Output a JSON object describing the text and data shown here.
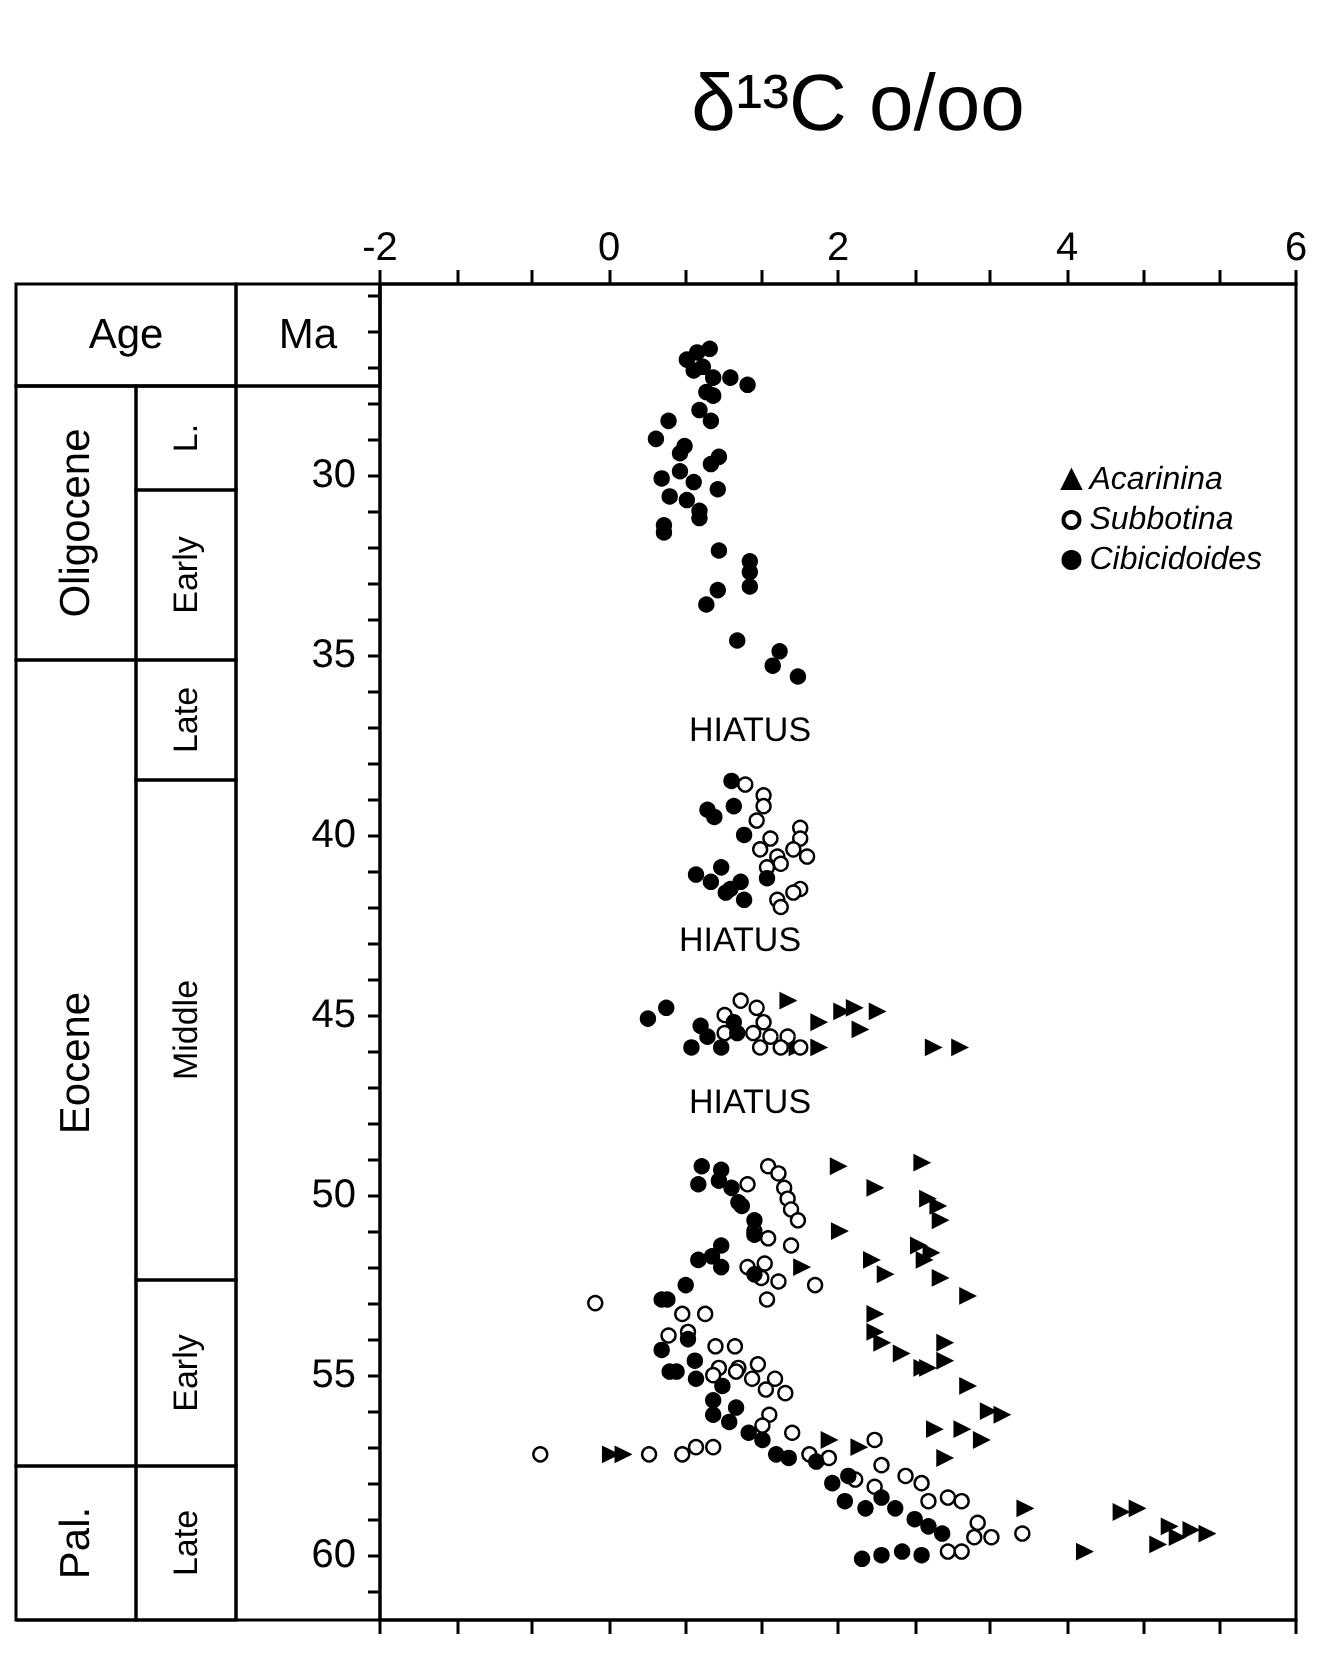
{
  "chart_data": {
    "type": "scatter",
    "xlabel": "δ¹³C o/oo",
    "ylabel": "Ma",
    "xlim": [
      -2,
      6
    ],
    "xticks": [
      -2,
      {
        "value": -1.33,
        "label": null
      },
      {
        "value": -0.67,
        "label": null
      },
      0,
      {
        "value": 0.67,
        "label": null
      },
      {
        "value": 1.33,
        "label": null
      },
      2,
      {
        "value": 2.67,
        "label": null
      },
      {
        "value": 3.33,
        "label": null
      },
      4,
      {
        "value": 4.67,
        "label": null
      },
      {
        "value": 5.33,
        "label": null
      },
      6
    ],
    "ylim": [
      61.8,
      24.7
    ],
    "yticks": [
      {
        "value": 25,
        "label": null
      },
      {
        "value": 26,
        "label": null
      },
      {
        "value": 27,
        "label": null
      },
      {
        "value": 28,
        "label": null
      },
      {
        "value": 29,
        "label": null
      },
      30,
      {
        "value": 31,
        "label": null
      },
      {
        "value": 32,
        "label": null
      },
      {
        "value": 33,
        "label": null
      },
      {
        "value": 34,
        "label": null
      },
      35,
      {
        "value": 36,
        "label": null
      },
      {
        "value": 37,
        "label": null
      },
      {
        "value": 38,
        "label": null
      },
      {
        "value": 39,
        "label": null
      },
      40,
      {
        "value": 41,
        "label": null
      },
      {
        "value": 42,
        "label": null
      },
      {
        "value": 43,
        "label": null
      },
      {
        "value": 44,
        "label": null
      },
      45,
      {
        "value": 46,
        "label": null
      },
      {
        "value": 47,
        "label": null
      },
      {
        "value": 48,
        "label": null
      },
      {
        "value": 49,
        "label": null
      },
      50,
      {
        "value": 51,
        "label": null
      },
      {
        "value": 52,
        "label": null
      },
      {
        "value": 53,
        "label": null
      },
      {
        "value": 54,
        "label": null
      },
      55,
      {
        "value": 56,
        "label": null
      },
      {
        "value": 57,
        "label": null
      },
      {
        "value": 58,
        "label": null
      },
      {
        "value": 59,
        "label": null
      },
      60,
      {
        "value": 61,
        "label": null
      }
    ],
    "legend": "top right",
    "annotations": [
      "Age",
      "Oligocene",
      "L.",
      "Early",
      "Eocene",
      "Late",
      "Middle",
      "Early",
      "Pal.",
      "Late",
      "HIATUS",
      "HIATUS",
      "HIATUS"
    ],
    "series": [
      {
        "name": "Acarinina",
        "color": "#000000",
        "marker": "triangle",
        "x": [
          1.56,
          1.83,
          2.03,
          2.14,
          2.34,
          2.19,
          1.83,
          2.83,
          3.06,
          1.64,
          2.0,
          2.32,
          2.73,
          2.78,
          2.87,
          2.89,
          2.01,
          2.7,
          2.81,
          2.75,
          2.29,
          2.41,
          2.89,
          3.13,
          2.32,
          2.32,
          2.38,
          2.55,
          2.93,
          2.78,
          2.93,
          1.68,
          0.01,
          0.12,
          1.92,
          2.18,
          2.84,
          2.93,
          3.13,
          3.31,
          3.43,
          3.08,
          3.25,
          3.63,
          4.15,
          4.47,
          4.61,
          4.89,
          4.79,
          4.96,
          5.08,
          5.22,
          2.73
        ],
        "values": [
          44.6,
          45.2,
          44.9,
          44.8,
          44.9,
          45.4,
          45.9,
          45.9,
          45.9,
          45.9,
          49.2,
          49.8,
          49.1,
          50.1,
          50.3,
          50.7,
          51.0,
          51.4,
          51.6,
          51.8,
          51.8,
          52.2,
          52.3,
          52.8,
          53.3,
          53.8,
          54.1,
          54.4,
          54.1,
          54.8,
          54.6,
          52.0,
          57.2,
          57.2,
          56.8,
          57.0,
          56.5,
          57.3,
          55.3,
          56.0,
          56.1,
          56.5,
          56.8,
          58.7,
          59.9,
          58.8,
          58.7,
          59.2,
          59.7,
          59.5,
          59.3,
          59.4,
          54.8
        ]
      },
      {
        "name": "Subbotina",
        "color": "#ffffff",
        "marker": "circle",
        "x": [
          1.19,
          1.35,
          1.35,
          1.29,
          1.41,
          1.32,
          1.47,
          1.67,
          1.67,
          1.61,
          1.73,
          1.5,
          1.38,
          1.67,
          1.61,
          1.47,
          1.5,
          1.15,
          1.01,
          1.29,
          1.35,
          1.26,
          1.41,
          1.56,
          1.32,
          1.5,
          1.67,
          1.01,
          1.39,
          1.48,
          1.21,
          1.53,
          1.56,
          1.59,
          1.65,
          1.27,
          1.39,
          1.59,
          1.21,
          1.36,
          1.33,
          1.48,
          1.8,
          1.38,
          -0.12,
          0.64,
          0.84,
          0.52,
          0.69,
          0.93,
          1.1,
          0.96,
          1.13,
          1.3,
          1.45,
          0.91,
          1.11,
          1.25,
          1.37,
          1.54,
          1.4,
          1.34,
          1.6,
          1.75,
          1.92,
          2.32,
          2.15,
          2.38,
          2.59,
          2.73,
          2.79,
          2.96,
          3.08,
          3.22,
          3.34,
          3.19,
          2.96,
          3.08,
          -0.6,
          0.35,
          0.64,
          0.76,
          0.91,
          3.61,
          2.32
        ],
        "values": [
          38.6,
          38.9,
          39.2,
          39.6,
          40.1,
          40.4,
          40.6,
          39.8,
          40.1,
          40.4,
          40.6,
          40.8,
          40.9,
          41.5,
          41.6,
          41.8,
          42.0,
          44.6,
          45.0,
          44.8,
          45.2,
          45.5,
          45.6,
          45.6,
          45.9,
          45.9,
          45.9,
          45.5,
          49.2,
          49.4,
          49.7,
          49.8,
          50.1,
          50.4,
          50.7,
          51.0,
          51.2,
          51.4,
          52.0,
          51.9,
          52.3,
          52.4,
          52.5,
          52.9,
          53.0,
          53.3,
          53.3,
          53.9,
          53.8,
          54.2,
          54.2,
          54.8,
          54.8,
          54.7,
          55.1,
          55.0,
          54.9,
          55.1,
          55.4,
          55.5,
          56.1,
          56.4,
          56.6,
          57.2,
          57.3,
          56.8,
          57.9,
          57.5,
          57.8,
          58.0,
          58.5,
          58.4,
          58.5,
          59.1,
          59.5,
          59.5,
          59.9,
          59.9,
          57.2,
          57.2,
          57.2,
          57.0,
          57.0,
          59.4,
          58.1
        ]
      },
      {
        "name": "Cibicidoides",
        "color": "#000000",
        "marker": "circle",
        "x": [
          0.88,
          0.77,
          0.68,
          0.74,
          0.82,
          0.91,
          1.06,
          1.21,
          0.85,
          0.91,
          0.79,
          0.89,
          0.52,
          0.41,
          0.66,
          0.62,
          0.89,
          0.96,
          0.46,
          0.62,
          0.74,
          0.95,
          0.53,
          0.68,
          0.79,
          0.79,
          0.48,
          0.48,
          0.96,
          1.23,
          1.23,
          1.23,
          0.95,
          0.85,
          1.12,
          1.49,
          1.43,
          1.65,
          1.07,
          0.86,
          0.92,
          1.09,
          1.18,
          1.38,
          0.76,
          0.98,
          0.89,
          1.06,
          1.15,
          1.18,
          1.02,
          0.34,
          0.5,
          0.8,
          0.72,
          0.86,
          0.98,
          1.09,
          1.12,
          0.81,
          0.98,
          0.78,
          0.96,
          1.07,
          1.13,
          1.16,
          1.27,
          1.27,
          0.98,
          0.78,
          0.9,
          0.98,
          1.27,
          0.46,
          0.67,
          0.51,
          0.46,
          0.59,
          0.75,
          0.69,
          0.53,
          0.76,
          0.91,
          0.91,
          1.05,
          1.22,
          1.34,
          1.46,
          1.57,
          1.81,
          1.95,
          2.06,
          2.24,
          2.38,
          2.5,
          2.67,
          2.79,
          2.91,
          2.21,
          2.38,
          2.56,
          2.73,
          1.11,
          0.99,
          2.09
        ],
        "values": [
          26.5,
          26.6,
          26.8,
          27.1,
          27.0,
          27.3,
          27.3,
          27.5,
          27.7,
          27.8,
          28.2,
          28.5,
          28.5,
          29.0,
          29.2,
          29.4,
          29.7,
          29.5,
          30.1,
          29.9,
          30.2,
          30.4,
          30.6,
          30.7,
          31.0,
          31.2,
          31.4,
          31.6,
          32.1,
          32.4,
          32.7,
          33.1,
          33.2,
          33.6,
          34.6,
          34.9,
          35.3,
          35.6,
          38.5,
          39.3,
          39.5,
          39.2,
          40.0,
          41.2,
          41.1,
          40.9,
          41.3,
          41.5,
          41.3,
          41.8,
          41.6,
          45.1,
          44.8,
          45.3,
          45.9,
          45.6,
          45.9,
          45.2,
          45.5,
          49.2,
          49.3,
          49.7,
          49.6,
          49.8,
          50.2,
          50.3,
          50.7,
          51.1,
          51.4,
          51.8,
          51.7,
          52.0,
          52.2,
          52.9,
          52.5,
          52.9,
          54.3,
          54.9,
          54.6,
          54.0,
          54.9,
          55.1,
          55.7,
          56.1,
          56.3,
          56.6,
          56.8,
          57.2,
          57.3,
          57.4,
          58.0,
          58.5,
          58.7,
          58.4,
          58.7,
          59.0,
          59.2,
          59.4,
          60.1,
          60.0,
          59.9,
          60.0,
          55.9,
          55.3,
          57.8
        ]
      }
    ]
  }
}
